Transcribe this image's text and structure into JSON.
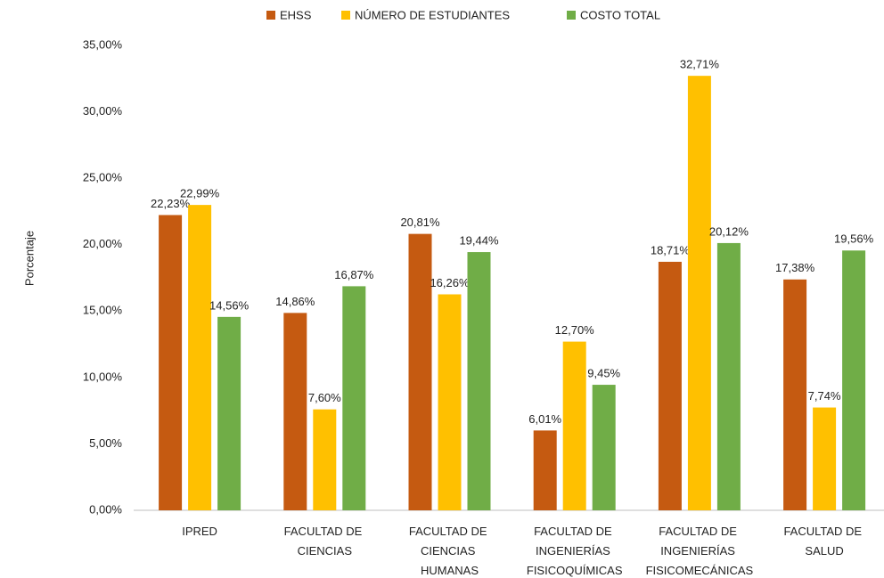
{
  "chart_data": {
    "type": "bar",
    "y_label": "Porcentaje",
    "categories": [
      "IPRED",
      "FACULTAD DE CIENCIAS",
      "FACULTAD DE CIENCIAS HUMANAS",
      "FACULTAD DE INGENIERÍAS FISICOQUÍMICAS",
      "FACULTAD DE INGENIERÍAS FISICOMECÁNICAS",
      "FACULTAD DE SALUD"
    ],
    "series": [
      {
        "name": "EHSS",
        "color": "#c55a11",
        "values": [
          22.23,
          14.86,
          20.81,
          6.01,
          18.71,
          17.38
        ],
        "value_labels": [
          "22,23%",
          "14,86%",
          "20,81%",
          "6,01%",
          "18,71%",
          "17,38%"
        ]
      },
      {
        "name": "NÚMERO DE ESTUDIANTES",
        "color": "#ffc000",
        "values": [
          22.99,
          7.6,
          16.26,
          12.7,
          32.71,
          7.74
        ],
        "value_labels": [
          "22,99%",
          "7,60%",
          "16,26%",
          "12,70%",
          "32,71%",
          "7,74%"
        ]
      },
      {
        "name": "COSTO TOTAL",
        "color": "#70ad47",
        "values": [
          14.56,
          16.87,
          19.44,
          9.45,
          20.12,
          19.56
        ],
        "value_labels": [
          "14,56%",
          "16,87%",
          "19,44%",
          "9,45%",
          "20,12%",
          "19,56%"
        ]
      }
    ],
    "ylim": [
      0,
      35
    ],
    "yticks": [
      {
        "value": 0,
        "label": "0,00%"
      },
      {
        "value": 5,
        "label": "5,00%"
      },
      {
        "value": 10,
        "label": "10,00%"
      },
      {
        "value": 15,
        "label": "15,00%"
      },
      {
        "value": 20,
        "label": "20,00%"
      },
      {
        "value": 25,
        "label": "25,00%"
      },
      {
        "value": 30,
        "label": "30,00%"
      },
      {
        "value": 35,
        "label": "35,00%"
      }
    ],
    "grid": false,
    "legend": "top"
  }
}
